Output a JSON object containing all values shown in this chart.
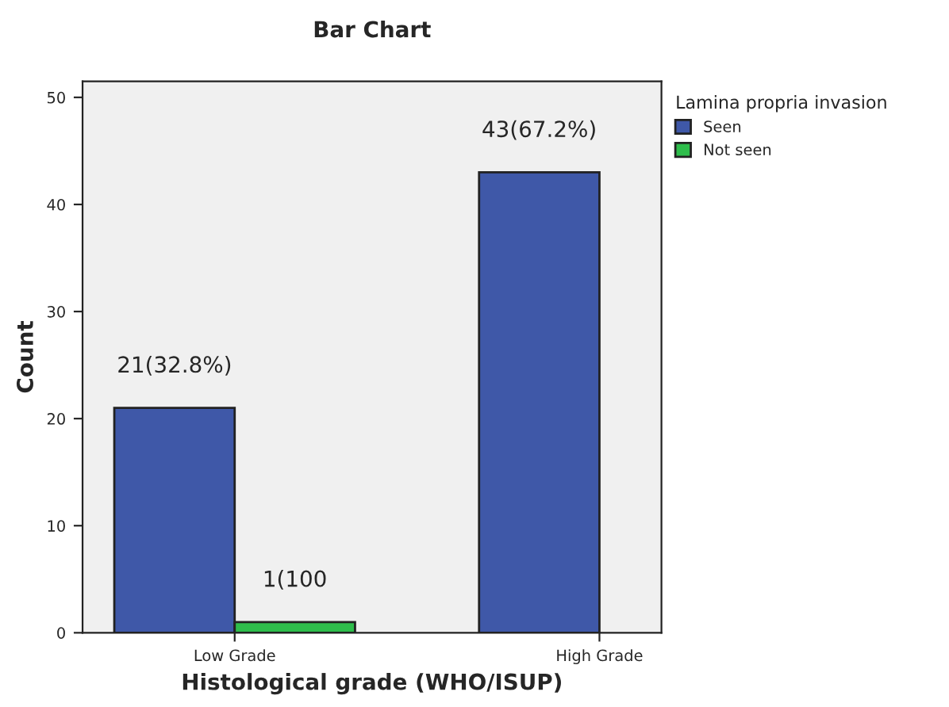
{
  "chart_data": {
    "type": "bar",
    "title": "Bar Chart",
    "xlabel": "Histological grade (WHO/ISUP)",
    "ylabel": "Count",
    "legend_title": "Lamina propria invasion",
    "categories": [
      "Low Grade",
      "High Grade"
    ],
    "series": [
      {
        "name": "Seen",
        "color": "#3f58a8",
        "values": [
          21,
          43
        ],
        "value_labels": [
          "21(32.8%)",
          "43(67.2%)"
        ]
      },
      {
        "name": "Not seen",
        "color": "#2ebd4b",
        "values": [
          1,
          null
        ],
        "value_labels": [
          "1(100",
          null
        ]
      }
    ],
    "ylim": [
      0,
      51.5
    ],
    "yticks": [
      0,
      10,
      20,
      30,
      40,
      50
    ],
    "grid": false,
    "legend": "top right"
  }
}
